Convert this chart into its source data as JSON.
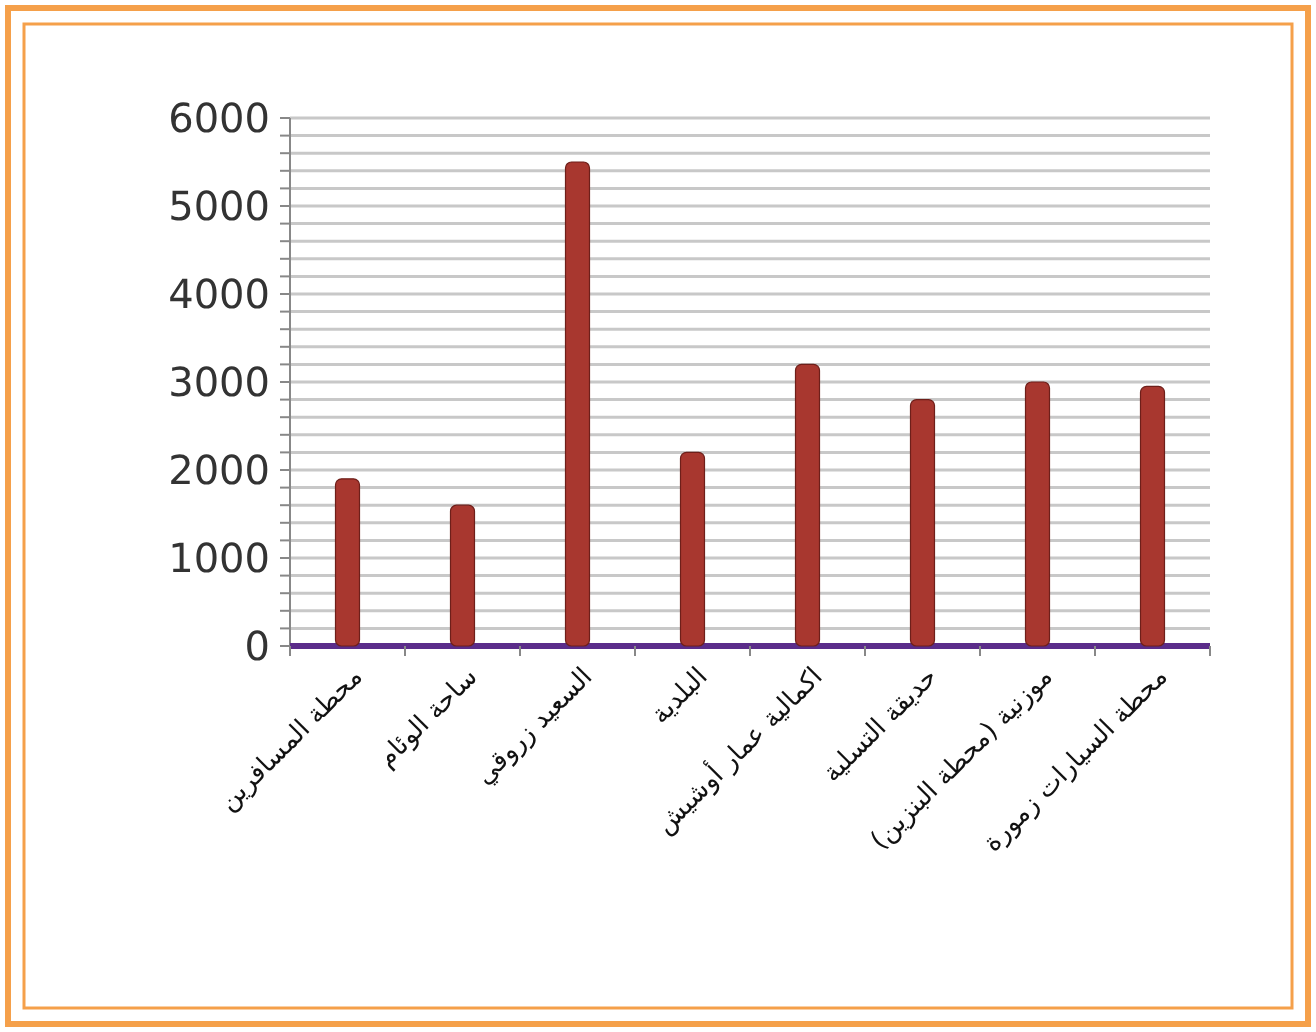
{
  "chart_data": {
    "type": "bar",
    "categories": [
      "محطة المسافرين",
      "ساحة الوئام",
      "السعيد زروقي",
      "البلدية",
      "اكمالية عمار أوشيش",
      "حديقة التسلية",
      "موزنية (محطة البنزين)",
      "محطة السيارات زمورة"
    ],
    "values": [
      1900,
      1600,
      5500,
      2200,
      3200,
      2800,
      3000,
      2950
    ],
    "color": "#a8372f",
    "ylim": [
      0,
      6000
    ],
    "yticks": [
      0,
      {
        "value": 200,
        "label": null
      },
      {
        "value": 400,
        "label": null
      },
      {
        "value": 600,
        "label": null
      },
      {
        "value": 800,
        "label": null
      },
      1000,
      {
        "value": 1200,
        "label": null
      },
      {
        "value": 1400,
        "label": null
      },
      {
        "value": 1600,
        "label": null
      },
      {
        "value": 1800,
        "label": null
      },
      2000,
      {
        "value": 2200,
        "label": null
      },
      {
        "value": 2400,
        "label": null
      },
      {
        "value": 2600,
        "label": null
      },
      {
        "value": 2800,
        "label": null
      },
      3000,
      {
        "value": 3200,
        "label": null
      },
      {
        "value": 3400,
        "label": null
      },
      {
        "value": 3600,
        "label": null
      },
      {
        "value": 3800,
        "label": null
      },
      4000,
      {
        "value": 4200,
        "label": null
      },
      {
        "value": 4400,
        "label": null
      },
      {
        "value": 4600,
        "label": null
      },
      {
        "value": 4800,
        "label": null
      },
      5000,
      {
        "value": 5200,
        "label": null
      },
      {
        "value": 5400,
        "label": null
      },
      {
        "value": 5600,
        "label": null
      },
      {
        "value": 5800,
        "label": null
      },
      6000
    ],
    "grid": "y"
  }
}
